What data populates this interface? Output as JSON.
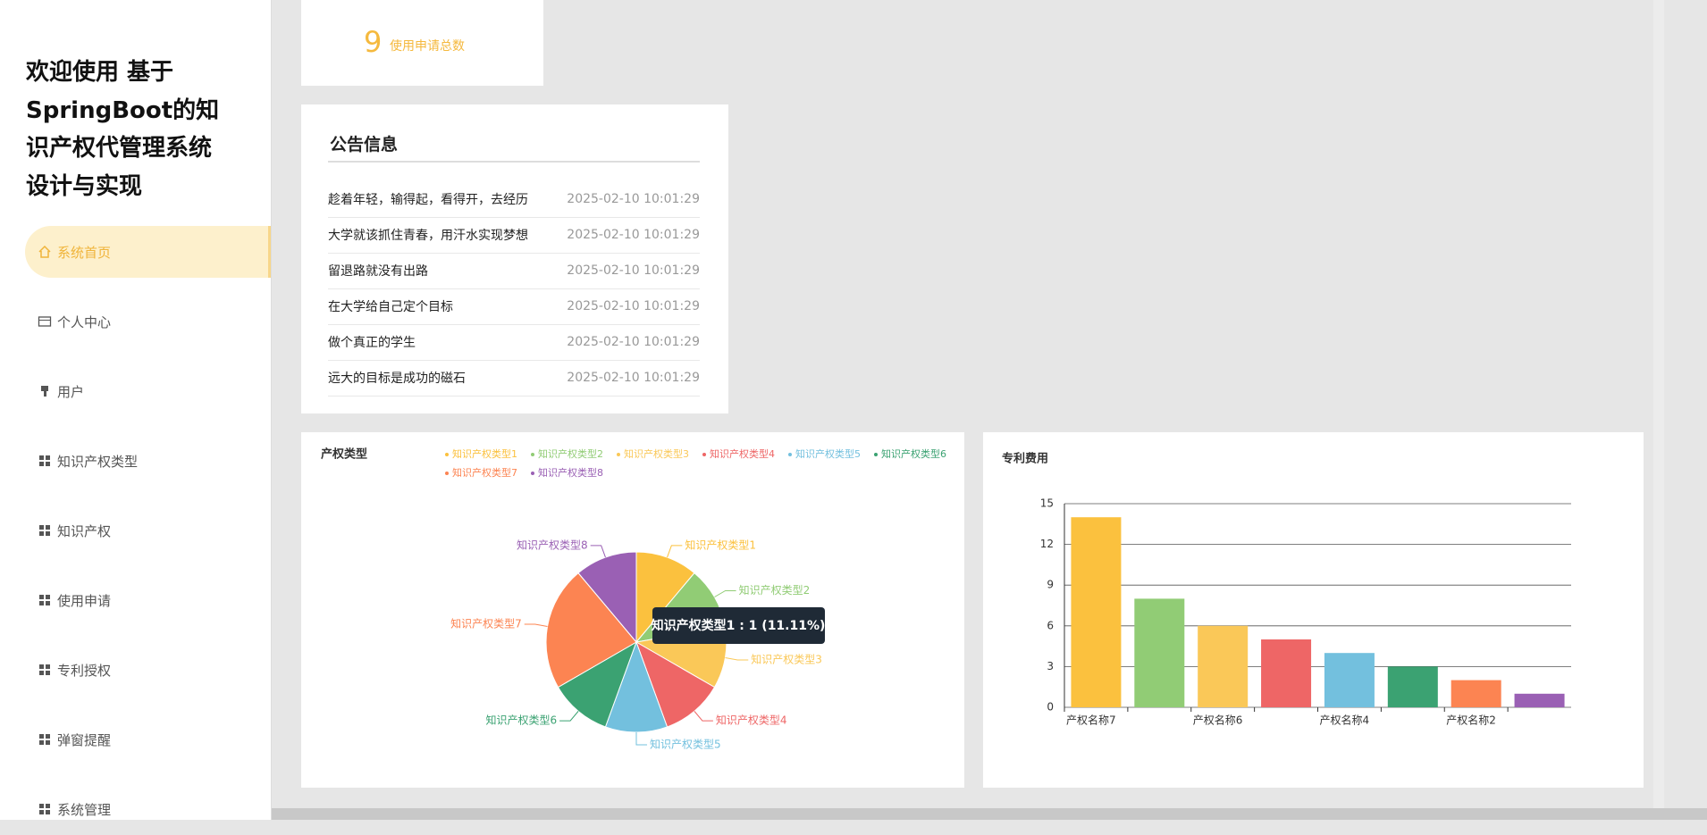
{
  "sidebar": {
    "title_lines": [
      "欢迎使用 基于",
      "SpringBoot的知",
      "识产权代管理系统",
      "设计与实现"
    ],
    "menu": [
      "系统首页",
      "个人中心",
      "用户",
      "知识产权类型",
      "知识产权",
      "使用申请",
      "专利授权",
      "弹窗提醒",
      "系统管理"
    ]
  },
  "stat_card": {
    "value": 9,
    "label": "使用申请总数"
  },
  "notice": {
    "title": "公告信息",
    "rows": [
      [
        "趁着年轻，输得起，看得开，去经历",
        "2025-02-10 10:01:29"
      ],
      [
        "大学就该抓住青春，用汗水实现梦想",
        "2025-02-10 10:01:29"
      ],
      [
        "留退路就没有出路",
        "2025-02-10 10:01:29"
      ],
      [
        "在大学给自己定个目标",
        "2025-02-10 10:01:29"
      ],
      [
        "做个真正的学生",
        "2025-02-10 10:01:29"
      ],
      [
        "远大的目标是成功的磁石",
        "2025-02-10 10:01:29"
      ]
    ]
  },
  "pie_chart": {
    "type": "pie",
    "title": "产权类型",
    "categories": [
      "知识产权类型1",
      "知识产权类型2",
      "知识产权类型3",
      "知识产权类型4",
      "知识产权类型5",
      "知识产权类型6",
      "知识产权类型7",
      "知识产权类型8"
    ],
    "values": [
      1,
      1,
      1,
      1,
      1,
      1,
      2,
      1
    ],
    "colors": [
      "#fbc13e",
      "#91cc75",
      "#fac858",
      "#ee6666",
      "#73c0de",
      "#3ba272",
      "#fc8452",
      "#9a60b4"
    ],
    "tooltip": "知识产权类型1 : 1 (11.11%)"
  },
  "bar_chart": {
    "type": "bar",
    "title": "专利费用",
    "categories": [
      "产权名称7",
      null,
      "产权名称6",
      null,
      "产权名称4",
      null,
      "产权名称2",
      null
    ],
    "values": [
      14,
      8,
      6,
      5,
      4,
      3,
      2,
      1
    ],
    "colors": [
      "#fbc13e",
      "#91cc75",
      "#fac858",
      "#ee6666",
      "#73c0de",
      "#3ba272",
      "#fc8452",
      "#9a60b4"
    ],
    "ylim": [
      0,
      15
    ],
    "yticks": [
      0,
      3,
      6,
      9,
      12,
      15
    ],
    "grid": true
  }
}
